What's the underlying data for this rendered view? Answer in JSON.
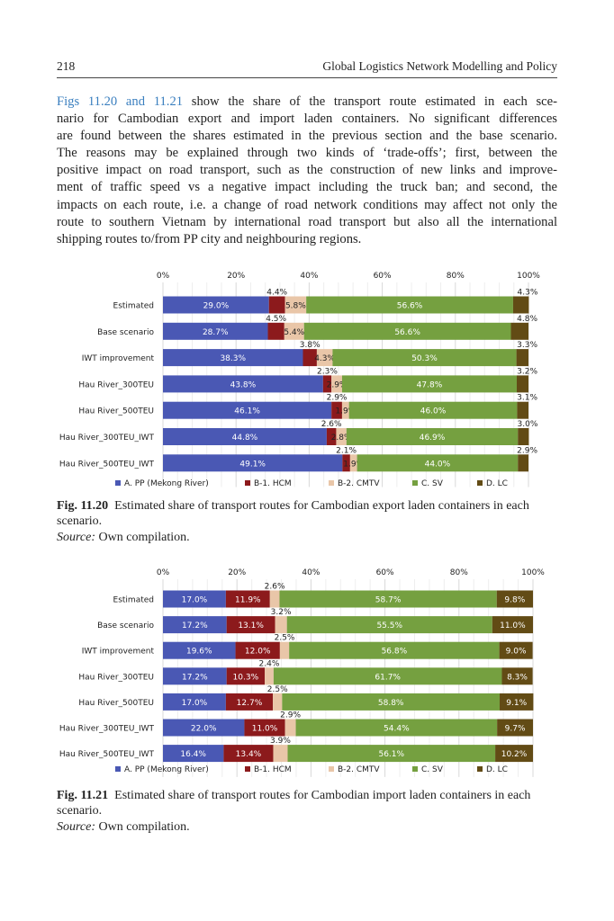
{
  "header": {
    "page_number": "218",
    "running_title": "Global Logistics Network Modelling and Policy"
  },
  "paragraph": {
    "ref_text": "Figs 11.20 and 11.21",
    "lines": [
      " show the share of the transport route estimated in each sce-",
      "nario for Cambodian export and import laden containers. No significant differences",
      "are found between the shares estimated in the previous section and the base scenario.",
      "The reasons may be explained through two kinds of ‘trade-offs’; first, between the",
      "positive impact on road transport, such as the construction of new links and improve-",
      "ment of traffic speed vs a negative impact including the truck ban; and second, the",
      "impacts on each route, i.e. a change of road network conditions may affect not only the",
      "route to southern Vietnam by international road transport but also all the international",
      "shipping routes to/from PP city and neighbouring regions."
    ]
  },
  "colors": {
    "A": "#4a58b4",
    "B1": "#8c1a1c",
    "B2": "#e9c6a8",
    "C": "#75a040",
    "D": "#624b15"
  },
  "chart_data": [
    {
      "type": "bar",
      "orientation": "horizontal-stacked",
      "x_ticks": [
        "0%",
        "20%",
        "40%",
        "60%",
        "80%",
        "100%"
      ],
      "xlim": [
        0,
        100
      ],
      "legend_placement": "bottom",
      "categories": [
        "Estimated",
        "Base scenario",
        "IWT improvement",
        "Hau River_300TEU",
        "Hau River_500TEU",
        "Hau River_300TEU_IWT",
        "Hau River_500TEU_IWT"
      ],
      "series": [
        {
          "name": "A. PP (Mekong River)",
          "values": [
            29.0,
            28.7,
            38.3,
            43.8,
            46.1,
            44.8,
            49.1
          ]
        },
        {
          "name": "B-1. HCM",
          "values": [
            4.4,
            4.5,
            3.8,
            2.3,
            2.9,
            2.6,
            2.1
          ]
        },
        {
          "name": "B-2. CMTV",
          "values": [
            5.8,
            5.4,
            4.3,
            2.9,
            1.9,
            2.8,
            1.9
          ]
        },
        {
          "name": "C. SV",
          "values": [
            56.6,
            56.6,
            50.3,
            47.8,
            46.0,
            46.9,
            44.0
          ]
        },
        {
          "name": "D. LC",
          "values": [
            4.3,
            4.8,
            3.3,
            3.2,
            3.1,
            3.0,
            2.9
          ]
        }
      ],
      "caption_label": "Fig. 11.20",
      "caption_text": "Estimated share of transport routes for Cambodian export laden containers in each scenario.",
      "source_label": "Source:",
      "source_text": "Own compilation."
    },
    {
      "type": "bar",
      "orientation": "horizontal-stacked",
      "x_ticks": [
        "0%",
        "20%",
        "40%",
        "60%",
        "80%",
        "100%"
      ],
      "xlim": [
        0,
        100
      ],
      "legend_placement": "bottom",
      "categories": [
        "Estimated",
        "Base scenario",
        "IWT improvement",
        "Hau River_300TEU",
        "Hau River_500TEU",
        "Hau River_300TEU_IWT",
        "Hau River_500TEU_IWT"
      ],
      "series": [
        {
          "name": "A. PP (Mekong River)",
          "values": [
            17.0,
            17.2,
            19.6,
            17.2,
            17.0,
            22.0,
            16.4
          ]
        },
        {
          "name": "B-1. HCM",
          "values": [
            11.9,
            13.1,
            12.0,
            10.3,
            12.7,
            11.0,
            13.4
          ]
        },
        {
          "name": "B-2. CMTV",
          "values": [
            2.6,
            3.2,
            2.5,
            2.4,
            2.5,
            2.9,
            3.9
          ]
        },
        {
          "name": "C. SV",
          "values": [
            58.7,
            55.5,
            56.8,
            61.7,
            58.8,
            54.4,
            56.1
          ]
        },
        {
          "name": "D. LC",
          "values": [
            9.8,
            11.0,
            9.0,
            8.3,
            9.1,
            9.7,
            10.2
          ]
        }
      ],
      "caption_label": "Fig. 11.21",
      "caption_text": "Estimated share of transport routes for Cambodian import laden containers in each scenario.",
      "source_label": "Source:",
      "source_text": "Own compilation."
    }
  ]
}
